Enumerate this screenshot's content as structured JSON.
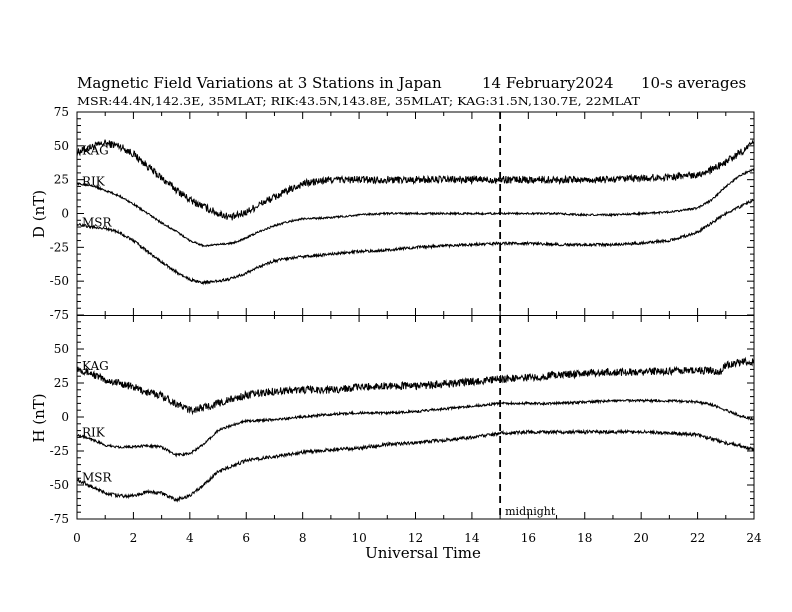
{
  "chart_data": {
    "type": "line",
    "title_left": "Magnetic Field Variations at 3 Stations in Japan",
    "title_date": "14 February2024",
    "title_avg": "10-s averages",
    "subtitle": "MSR:44.4N,142.3E, 35MLAT;  RIK:43.5N,143.8E, 35MLAT;  KAG:31.5N,130.7E, 22MLAT",
    "xlabel": "Universal Time",
    "xlim": [
      0,
      24
    ],
    "xticks": [
      "0",
      "2",
      "4",
      "6",
      "8",
      "10",
      "12",
      "14",
      "16",
      "18",
      "20",
      "22",
      "24"
    ],
    "midnight": {
      "x": 15,
      "label": "midnight"
    },
    "panels": [
      {
        "ylabel": "D (nT)",
        "ylim": [
          -75,
          75
        ],
        "yticks": [
          "75",
          "50",
          "25",
          "0",
          "-25",
          "-50",
          "-75"
        ],
        "series": [
          {
            "name": "KAG",
            "noise": 2.8,
            "x": [
              0,
              0.5,
              1,
              1.5,
              2,
              2.5,
              3,
              3.5,
              4,
              4.5,
              5,
              5.5,
              6,
              6.5,
              7,
              7.5,
              8,
              9,
              10,
              11,
              12,
              13,
              14,
              15,
              16,
              17,
              18,
              19,
              20,
              21,
              22,
              22.5,
              23,
              23.5,
              24
            ],
            "y": [
              45,
              49,
              52,
              50,
              44,
              35,
              26,
              18,
              10,
              5,
              0,
              -3,
              1,
              7,
              12,
              17,
              22,
              25,
              25,
              25,
              25,
              25,
              25,
              25,
              25,
              25,
              25,
              25,
              26,
              27,
              29,
              32,
              38,
              45,
              52
            ]
          },
          {
            "name": "RIK",
            "noise": 0.7,
            "x": [
              0,
              0.5,
              1,
              1.5,
              2,
              2.5,
              3,
              3.5,
              4,
              4.5,
              5,
              5.5,
              6,
              6.5,
              7,
              7.5,
              8,
              9,
              10,
              11,
              12,
              13,
              14,
              15,
              16,
              17,
              18,
              19,
              20,
              21,
              22,
              22.5,
              23,
              23.5,
              24
            ],
            "y": [
              22,
              21,
              17,
              13,
              7,
              0,
              -7,
              -13,
              -20,
              -24,
              -23,
              -22,
              -18,
              -13,
              -9,
              -6,
              -4,
              -3,
              -1,
              0,
              0,
              0,
              0,
              0,
              0,
              0,
              -1,
              -1,
              0,
              1,
              4,
              10,
              20,
              28,
              33
            ]
          },
          {
            "name": "MSR",
            "noise": 1.0,
            "x": [
              0,
              0.5,
              1,
              1.5,
              2,
              2.5,
              3,
              3.5,
              4,
              4.5,
              5,
              5.5,
              6,
              6.5,
              7,
              7.5,
              8,
              9,
              10,
              11,
              12,
              13,
              14,
              15,
              16,
              17,
              18,
              19,
              20,
              21,
              22,
              22.5,
              23,
              23.5,
              24
            ],
            "y": [
              -8,
              -10,
              -11,
              -14,
              -20,
              -28,
              -36,
              -43,
              -49,
              -51,
              -50,
              -48,
              -44,
              -39,
              -35,
              -33,
              -32,
              -30,
              -28,
              -27,
              -25,
              -24,
              -23,
              -22,
              -22,
              -23,
              -23,
              -23,
              -22,
              -20,
              -14,
              -7,
              0,
              5,
              10
            ]
          }
        ]
      },
      {
        "ylabel": "H (nT)",
        "ylim": [
          -75,
          75
        ],
        "yticks": [
          "50",
          "25",
          "0",
          "-25",
          "-50",
          "-75"
        ],
        "series": [
          {
            "name": "KAG",
            "noise": 2.8,
            "x": [
              0,
              0.5,
              1,
              1.5,
              2,
              2.5,
              3,
              3.5,
              4,
              4.5,
              5,
              5.5,
              6,
              7,
              8,
              9,
              10,
              11,
              12,
              13,
              14,
              15,
              16,
              17,
              18,
              19,
              20,
              21,
              22,
              22.5,
              22.8,
              23,
              23.5,
              24
            ],
            "y": [
              36,
              32,
              27,
              25,
              22,
              18,
              16,
              10,
              5,
              7,
              10,
              13,
              16,
              19,
              20,
              20,
              22,
              23,
              23,
              24,
              26,
              28,
              29,
              31,
              32,
              33,
              33,
              34,
              34,
              34,
              33,
              38,
              40,
              41
            ]
          },
          {
            "name": "RIK",
            "noise": 0.9,
            "x": [
              0,
              0.5,
              1,
              1.5,
              2,
              2.5,
              3,
              3.5,
              4,
              4.5,
              5,
              5.5,
              6,
              7,
              8,
              9,
              10,
              11,
              12,
              13,
              14,
              15,
              16,
              17,
              18,
              19,
              20,
              21,
              22,
              22.5,
              23,
              23.5,
              24
            ],
            "y": [
              -13,
              -16,
              -21,
              -22,
              -22,
              -21,
              -22,
              -28,
              -27,
              -20,
              -10,
              -6,
              -3,
              -2,
              0,
              2,
              3,
              3,
              4,
              6,
              8,
              10,
              10,
              10,
              11,
              12,
              12,
              12,
              11,
              9,
              5,
              1,
              -2
            ]
          },
          {
            "name": "MSR",
            "noise": 1.2,
            "x": [
              0,
              0.5,
              1,
              1.5,
              2,
              2.5,
              3,
              3.5,
              4,
              4.5,
              5,
              5.5,
              6,
              7,
              8,
              9,
              10,
              11,
              12,
              13,
              14,
              15,
              16,
              17,
              18,
              19,
              20,
              21,
              22,
              22.5,
              23,
              23.5,
              24
            ],
            "y": [
              -46,
              -51,
              -56,
              -58,
              -58,
              -55,
              -56,
              -61,
              -58,
              -50,
              -40,
              -36,
              -32,
              -29,
              -26,
              -24,
              -23,
              -20,
              -19,
              -17,
              -15,
              -12,
              -11,
              -11,
              -11,
              -11,
              -11,
              -12,
              -13,
              -16,
              -19,
              -21,
              -24
            ]
          }
        ]
      }
    ]
  }
}
